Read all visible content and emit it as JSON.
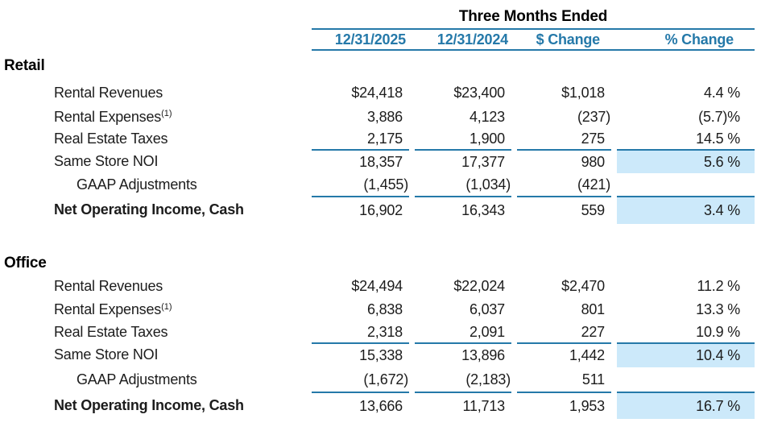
{
  "table": {
    "title": "Three Months Ended",
    "columns": [
      "12/31/2025",
      "12/31/2024",
      "$ Change",
      "% Change"
    ],
    "footnote_marker": "(1)",
    "colors": {
      "accent_blue": "#2579a9",
      "highlight_blue": "#cce9fa",
      "text": "#1c1c1c"
    },
    "sections": [
      {
        "name": "Retail",
        "rows": [
          {
            "label": "Rental Revenues",
            "v2025": "$24,418",
            "v2024": "$23,400",
            "chg": "$1,018",
            "pct": "4.4 %"
          },
          {
            "label": "Rental Expenses",
            "v2025": "3,886",
            "v2024": "4,123",
            "chg": "(237)",
            "pct": "(5.7)%"
          },
          {
            "label": "Real Estate Taxes",
            "v2025": "2,175",
            "v2024": "1,900",
            "chg": "275",
            "pct": "14.5 %"
          },
          {
            "label": "Same Store NOI",
            "v2025": "18,357",
            "v2024": "17,377",
            "chg": "980",
            "pct": "5.6 %"
          },
          {
            "label": "GAAP Adjustments",
            "v2025": "(1,455)",
            "v2024": "(1,034)",
            "chg": "(421)",
            "pct": ""
          },
          {
            "label": "Net Operating Income, Cash",
            "v2025": "16,902",
            "v2024": "16,343",
            "chg": "559",
            "pct": "3.4 %"
          }
        ]
      },
      {
        "name": "Office",
        "rows": [
          {
            "label": "Rental Revenues",
            "v2025": "$24,494",
            "v2024": "$22,024",
            "chg": "$2,470",
            "pct": "11.2 %"
          },
          {
            "label": "Rental Expenses",
            "v2025": "6,838",
            "v2024": "6,037",
            "chg": "801",
            "pct": "13.3 %"
          },
          {
            "label": "Real Estate Taxes",
            "v2025": "2,318",
            "v2024": "2,091",
            "chg": "227",
            "pct": "10.9 %"
          },
          {
            "label": "Same Store NOI",
            "v2025": "15,338",
            "v2024": "13,896",
            "chg": "1,442",
            "pct": "10.4 %"
          },
          {
            "label": "GAAP Adjustments",
            "v2025": "(1,672)",
            "v2024": "(2,183)",
            "chg": "511",
            "pct": ""
          },
          {
            "label": "Net Operating Income, Cash",
            "v2025": "13,666",
            "v2024": "11,713",
            "chg": "1,953",
            "pct": "16.7 %"
          }
        ]
      }
    ]
  }
}
